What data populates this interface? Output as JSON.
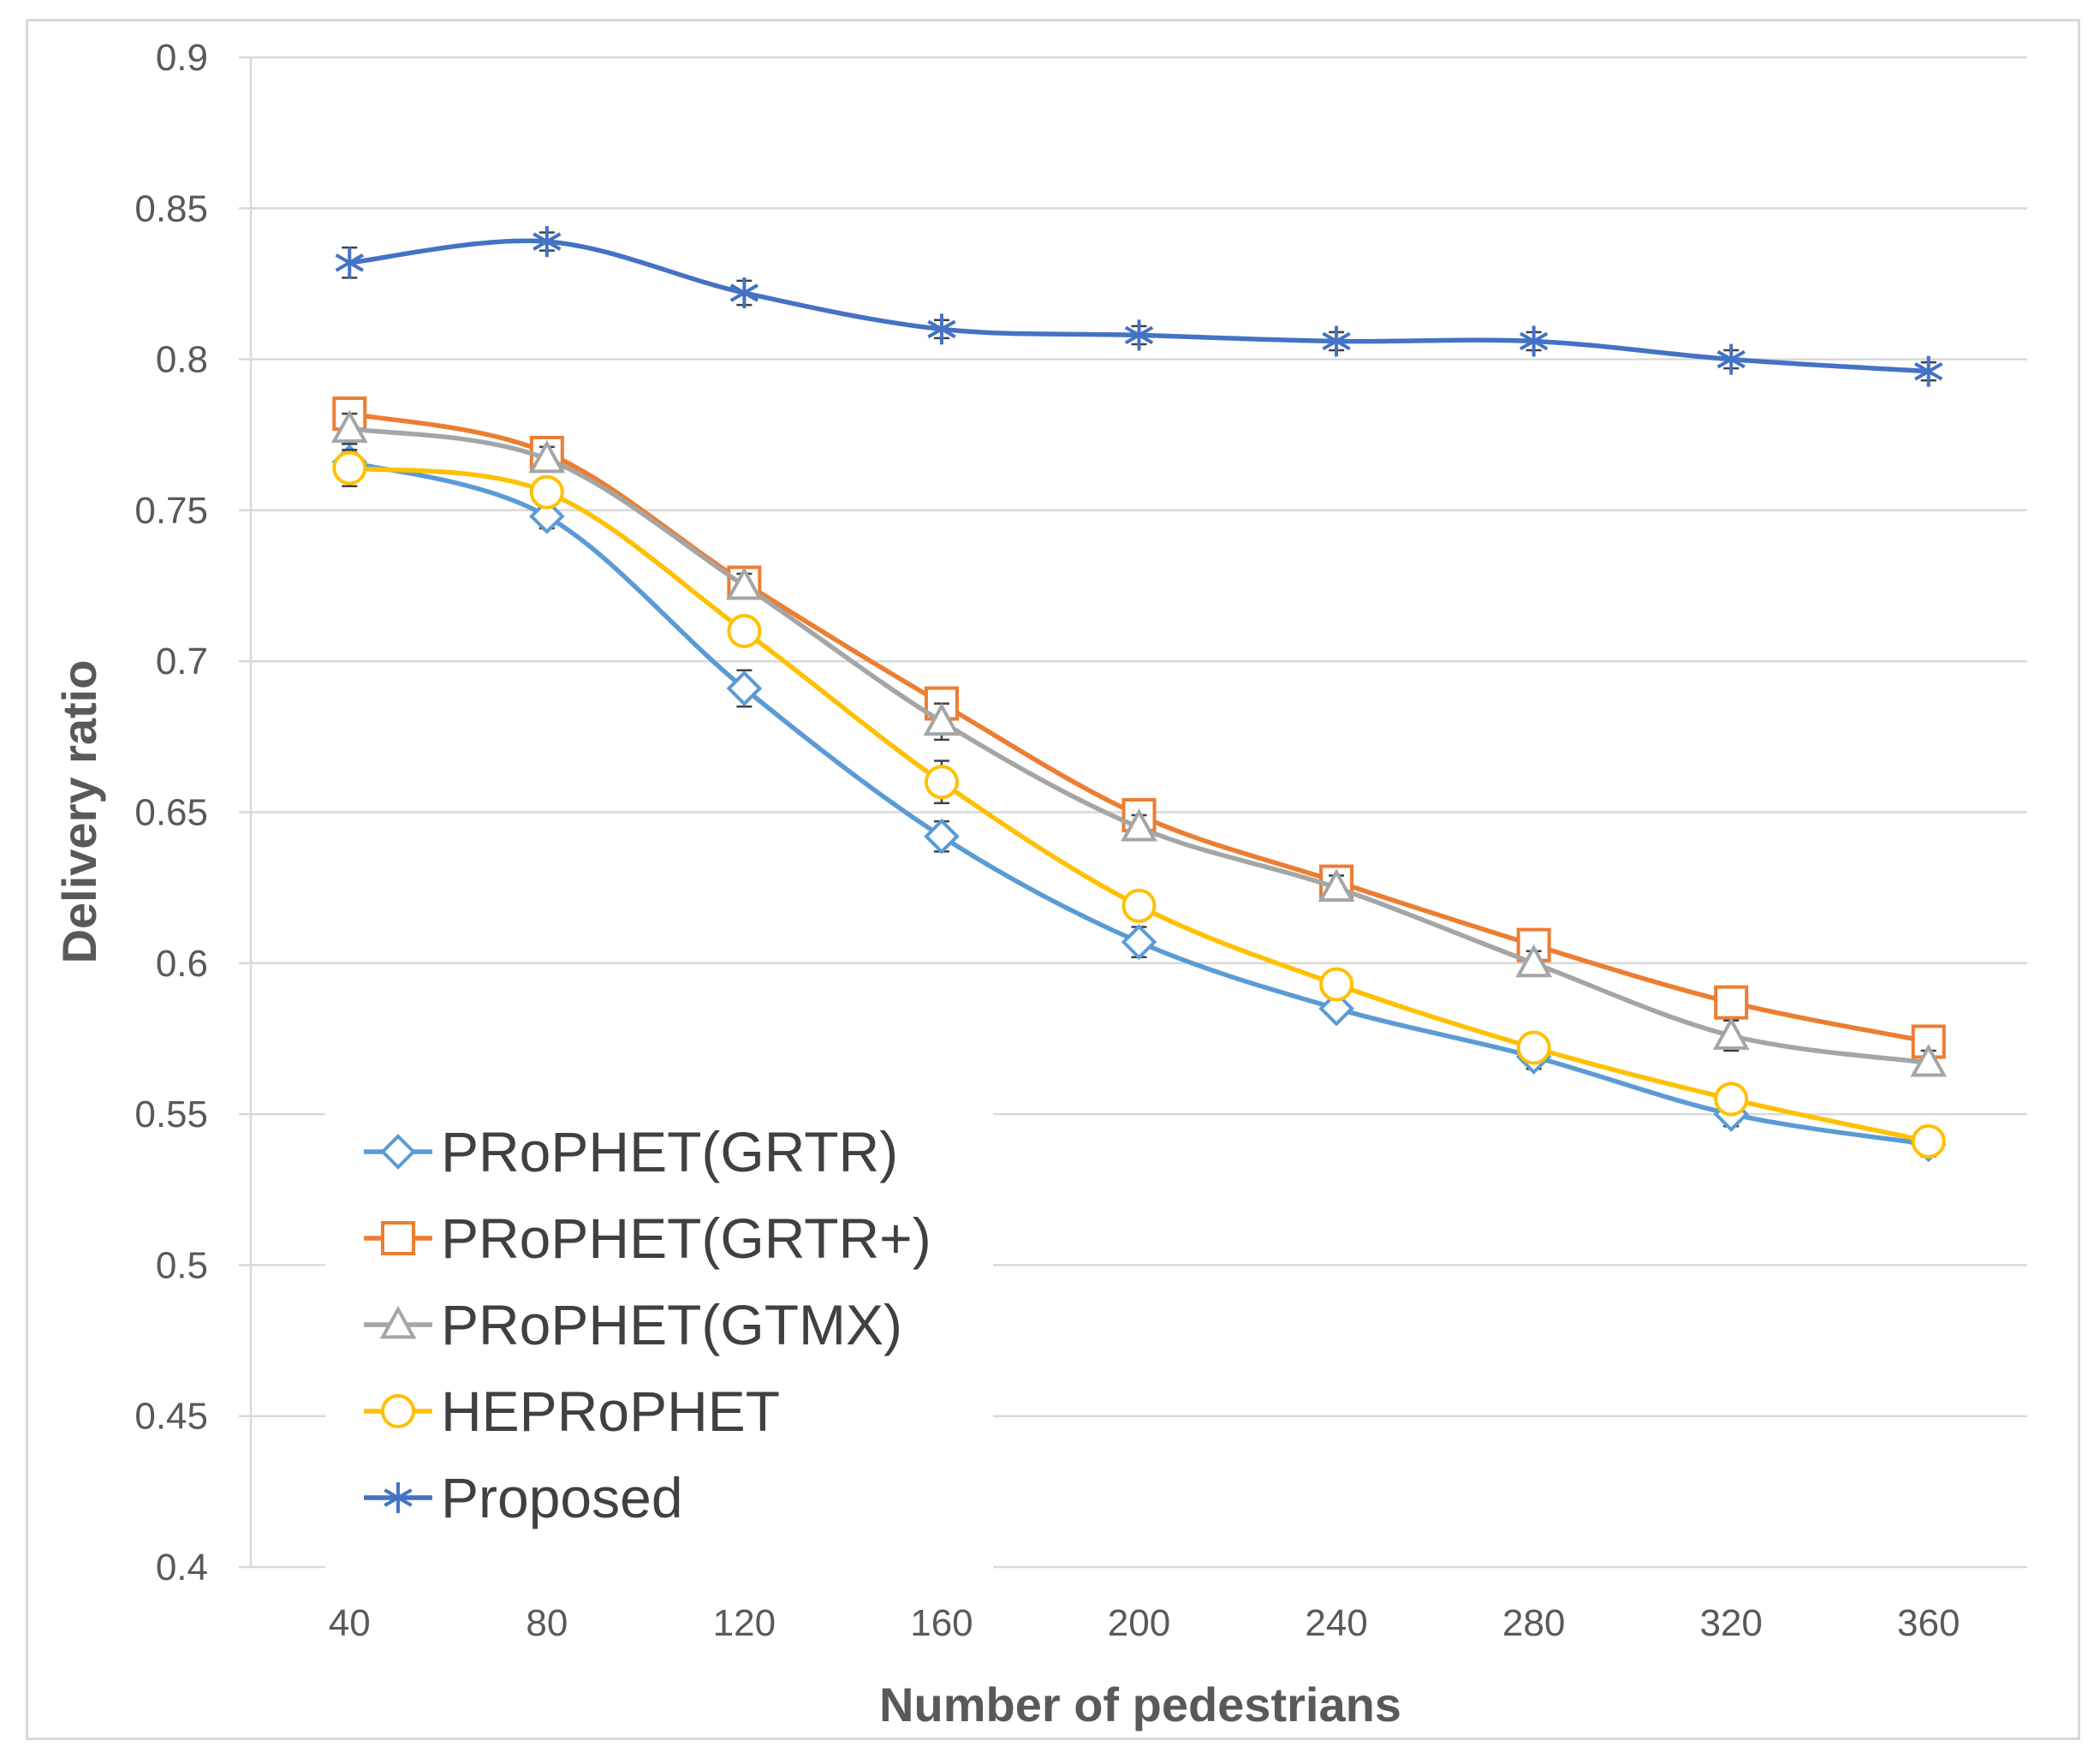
{
  "chart_data": {
    "type": "line",
    "title": "",
    "xlabel": "Number of pedestrians",
    "ylabel": "Delivery ratio",
    "categories": [
      "40",
      "80",
      "120",
      "160",
      "200",
      "240",
      "280",
      "320",
      "360"
    ],
    "yticks": [
      "0.4",
      "0.45",
      "0.5",
      "0.55",
      "0.6",
      "0.65",
      "0.7",
      "0.75",
      "0.8",
      "0.85",
      "0.9"
    ],
    "ylim": [
      0.4,
      0.9
    ],
    "grid": "horizontal",
    "legend_position": "bottom-left",
    "series": [
      {
        "name": "PRoPHET(GRTR)",
        "color": "#5b9bd5",
        "marker": "diamond",
        "values": [
          0.766,
          0.748,
          0.691,
          0.642,
          0.607,
          0.585,
          0.569,
          0.55,
          0.54
        ],
        "errors": [
          0.006,
          0.004,
          0.006,
          0.005,
          0.005,
          0.003,
          0.004,
          0.004,
          0.004
        ]
      },
      {
        "name": "PRoPHET(GRTR+)",
        "color": "#ed7d31",
        "marker": "square",
        "values": [
          0.782,
          0.769,
          0.726,
          0.686,
          0.649,
          0.627,
          0.606,
          0.587,
          0.574
        ],
        "errors": [
          0.005,
          0.004,
          0.004,
          0.004,
          0.005,
          0.004,
          0.004,
          0.005,
          0.005
        ]
      },
      {
        "name": "PRoPHET(GTMX)",
        "color": "#a5a5a5",
        "marker": "triangle",
        "values": [
          0.777,
          0.767,
          0.725,
          0.68,
          0.645,
          0.625,
          0.6,
          0.576,
          0.567
        ],
        "errors": [
          0.005,
          0.004,
          0.004,
          0.006,
          0.004,
          0.004,
          0.004,
          0.005,
          0.004
        ]
      },
      {
        "name": "HEPRoPHET",
        "color": "#ffc000",
        "marker": "circle",
        "values": [
          0.764,
          0.756,
          0.71,
          0.66,
          0.619,
          0.593,
          0.572,
          0.555,
          0.541
        ],
        "errors": [
          0.006,
          0.004,
          0.004,
          0.007,
          0.004,
          0.004,
          0.004,
          0.004,
          0.004
        ]
      },
      {
        "name": "Proposed",
        "color": "#4472c4",
        "marker": "star",
        "values": [
          0.832,
          0.839,
          0.822,
          0.81,
          0.808,
          0.806,
          0.806,
          0.8,
          0.796
        ],
        "errors": [
          0.005,
          0.003,
          0.004,
          0.003,
          0.003,
          0.003,
          0.003,
          0.003,
          0.003
        ]
      }
    ]
  }
}
